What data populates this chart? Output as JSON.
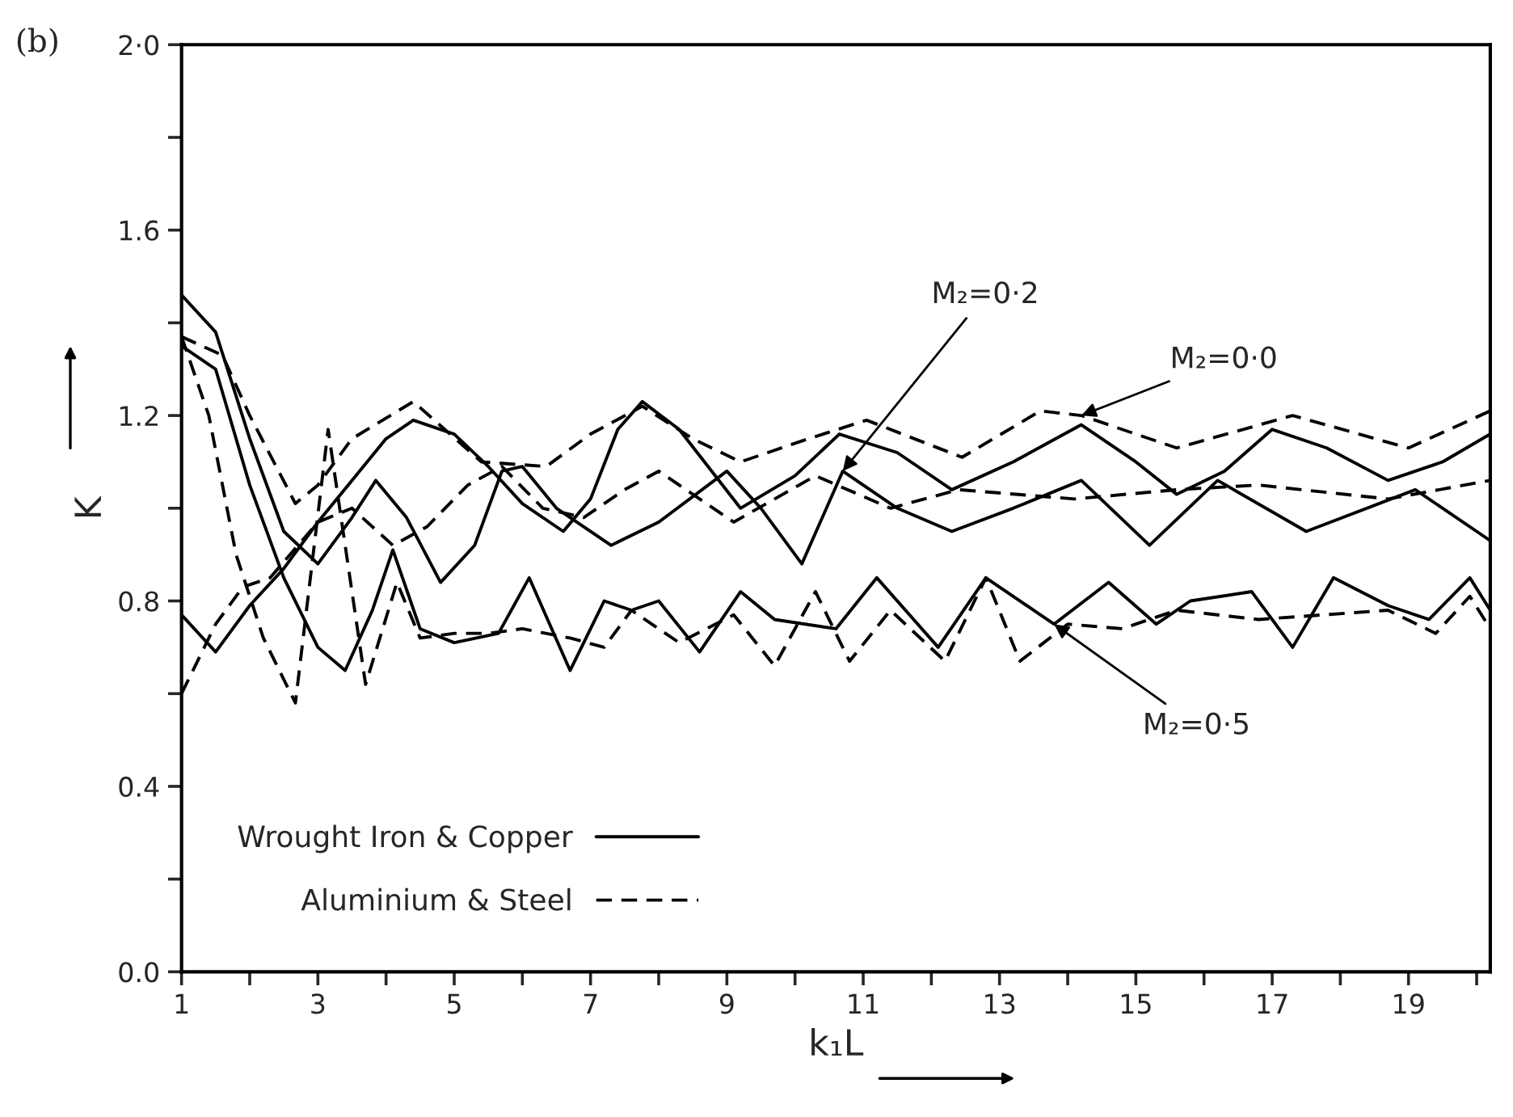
{
  "chart_data": {
    "type": "line",
    "xlabel": "k₁L",
    "ylabel": "K",
    "xlim": [
      1,
      20.2
    ],
    "ylim": [
      0,
      2.0
    ],
    "xticks": [
      1,
      {
        "value": 2,
        "label": null
      },
      3,
      {
        "value": 4,
        "label": null
      },
      5,
      {
        "value": 6,
        "label": null
      },
      7,
      {
        "value": 8,
        "label": null
      },
      9,
      {
        "value": 10,
        "label": null
      },
      11,
      {
        "value": 12,
        "label": null
      },
      13,
      {
        "value": 14,
        "label": null
      },
      15,
      {
        "value": 16,
        "label": null
      },
      17,
      {
        "value": 18,
        "label": null
      },
      19,
      {
        "value": 20,
        "label": null
      }
    ],
    "yticks": [
      {
        "value": 0,
        "label": "0.0"
      },
      {
        "value": 0.2,
        "label": null
      },
      0.4,
      {
        "value": 0.6,
        "label": null
      },
      0.8,
      {
        "value": 1.0,
        "label": null
      },
      1.2,
      {
        "value": 1.4,
        "label": null
      },
      1.6,
      {
        "value": 1.8,
        "label": null
      },
      {
        "value": 2.0,
        "label": "2·0"
      }
    ],
    "grid": false,
    "legend": "bottom left",
    "marker": "none",
    "series": [
      {
        "name": "Wrought Iron & Copper",
        "color": "#000000",
        "line_style": "solid",
        "x": [
          1,
          1.5,
          2,
          2.5,
          3,
          3.5,
          4,
          4.4,
          5,
          5.5,
          6,
          6.6,
          7.0,
          7.4,
          7.76,
          8.3,
          9.2,
          10,
          10.65,
          11.5,
          12.3,
          13.2,
          14.2,
          15,
          15.6,
          16.3,
          17.0,
          17.8,
          18.7,
          19.5,
          20.2
        ],
        "values": [
          0.77,
          0.69,
          0.79,
          0.87,
          0.97,
          1.06,
          1.15,
          1.19,
          1.16,
          1.09,
          1.01,
          0.95,
          1.02,
          1.17,
          1.23,
          1.17,
          1.0,
          1.07,
          1.16,
          1.12,
          1.04,
          1.1,
          1.18,
          1.1,
          1.03,
          1.08,
          1.17,
          1.13,
          1.06,
          1.1,
          1.16
        ]
      },
      {
        "color": "#000000",
        "line_style": "solid",
        "x": [
          1,
          1.5,
          2,
          2.5,
          3,
          3.5,
          3.85,
          4.3,
          4.8,
          5.3,
          5.7,
          6.0,
          6.5,
          7.3,
          8,
          9.0,
          9.5,
          10.1,
          10.7,
          11.5,
          12.3,
          13.2,
          14.2,
          15.2,
          16.2,
          17.5,
          19.1,
          20.2
        ],
        "values": [
          1.46,
          1.38,
          1.15,
          0.95,
          0.88,
          0.98,
          1.06,
          0.98,
          0.84,
          0.92,
          1.08,
          1.09,
          1.0,
          0.92,
          0.97,
          1.08,
          1.0,
          0.88,
          1.08,
          1.0,
          0.95,
          1.0,
          1.06,
          0.92,
          1.06,
          0.95,
          1.04,
          0.93
        ]
      },
      {
        "color": "#000000",
        "line_style": "solid",
        "x": [
          1,
          1.5,
          2,
          2.5,
          3,
          3.4,
          3.8,
          4.1,
          4.5,
          5,
          5.65,
          6.1,
          6.7,
          7.2,
          7.6,
          8.0,
          8.6,
          9.2,
          9.7,
          10.6,
          11.2,
          12.1,
          12.8,
          13.8,
          14.6,
          15.3,
          15.8,
          16.7,
          17.3,
          17.9,
          18.7,
          19.3,
          19.9,
          20.2
        ],
        "values": [
          1.35,
          1.3,
          1.05,
          0.85,
          0.7,
          0.65,
          0.78,
          0.91,
          0.74,
          0.71,
          0.73,
          0.85,
          0.65,
          0.8,
          0.78,
          0.8,
          0.69,
          0.82,
          0.76,
          0.74,
          0.85,
          0.7,
          0.85,
          0.75,
          0.84,
          0.75,
          0.8,
          0.82,
          0.7,
          0.85,
          0.79,
          0.76,
          0.85,
          0.78
        ]
      },
      {
        "name": "Aluminium & Steel",
        "color": "#000000",
        "line_style": "dashed",
        "x": [
          1,
          1.6,
          2,
          2.67,
          3,
          3.5,
          4.4,
          5.4,
          6.35,
          7,
          7.76,
          8.5,
          9.2,
          10.2,
          11.05,
          12.45,
          13.6,
          14.2,
          15.6,
          17.3,
          19.0,
          20.2
        ],
        "values": [
          1.37,
          1.33,
          1.2,
          1.01,
          1.05,
          1.15,
          1.23,
          1.1,
          1.09,
          1.16,
          1.22,
          1.15,
          1.1,
          1.15,
          1.19,
          1.11,
          1.21,
          1.2,
          1.13,
          1.2,
          1.13,
          1.21
        ]
      },
      {
        "color": "#000000",
        "line_style": "dashed",
        "x": [
          1,
          1.5,
          1.9,
          2.3,
          3,
          3.5,
          4.1,
          4.6,
          5.2,
          5.7,
          6.3,
          6.9,
          7.5,
          8.0,
          9.1,
          10.3,
          11.4,
          12.4,
          14.1,
          15.6,
          16.8,
          18.7,
          20.2
        ],
        "values": [
          0.6,
          0.75,
          0.83,
          0.85,
          0.97,
          1.0,
          0.92,
          0.96,
          1.05,
          1.09,
          1.0,
          0.98,
          1.04,
          1.08,
          0.97,
          1.07,
          1.0,
          1.04,
          1.02,
          1.04,
          1.05,
          1.02,
          1.06
        ]
      },
      {
        "color": "#000000",
        "line_style": "dashed",
        "x": [
          1,
          1.4,
          1.8,
          2.2,
          2.67,
          3.15,
          3.7,
          4.16,
          4.5,
          5,
          5.5,
          6,
          6.7,
          7.2,
          7.6,
          8.3,
          9.1,
          9.7,
          10.3,
          10.8,
          11.4,
          12.2,
          12.8,
          13.3,
          14.0,
          14.8,
          15.6,
          16.8,
          18.7,
          19.4,
          19.9,
          20.2
        ],
        "values": [
          1.37,
          1.2,
          0.9,
          0.72,
          0.58,
          1.17,
          0.62,
          0.84,
          0.72,
          0.73,
          0.73,
          0.74,
          0.72,
          0.7,
          0.78,
          0.71,
          0.77,
          0.66,
          0.82,
          0.67,
          0.78,
          0.67,
          0.85,
          0.67,
          0.75,
          0.74,
          0.78,
          0.76,
          0.78,
          0.73,
          0.81,
          0.74
        ]
      }
    ],
    "annotations": [
      "(b)",
      {
        "text": "M₂=0·2",
        "x": 10.7,
        "y": 1.08
      },
      {
        "text": "M₂=0·0",
        "x": 14.2,
        "y": 1.2
      },
      {
        "text": "M₂=0·5",
        "x": 13.8,
        "y": 0.75
      }
    ]
  }
}
